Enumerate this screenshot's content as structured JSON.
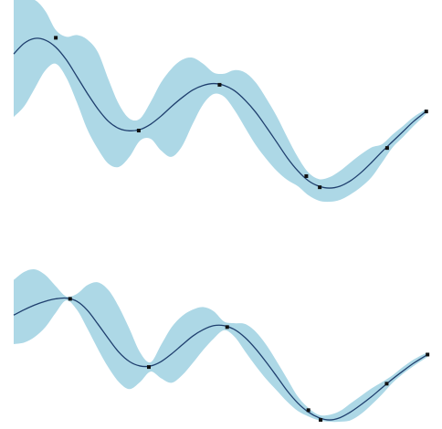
{
  "colors": {
    "band_fill": "#add8e6",
    "mean_line": "#1f3f6e",
    "point_marker": "#111111",
    "background": "#ffffff"
  },
  "chart_data": [
    {
      "type": "line",
      "description_role": "gaussian-process-top",
      "title": "",
      "xlabel": "",
      "ylabel": "",
      "axes_visible": false,
      "grid": false,
      "legend": "none",
      "xlim": [
        0,
        100
      ],
      "ylim": [
        0,
        100
      ],
      "observations": [
        {
          "x": 10,
          "y": 82
        },
        {
          "x": 29.7,
          "y": 37.8
        },
        {
          "x": 48.9,
          "y": 59.6
        },
        {
          "x": 69.5,
          "y": 16.1
        },
        {
          "x": 72.7,
          "y": 10.8
        },
        {
          "x": 88.7,
          "y": 29.5
        },
        {
          "x": 98,
          "y": 46.9
        }
      ],
      "mean": [
        {
          "x": 0,
          "y": 74.3
        },
        {
          "x": 2.5,
          "y": 79.4
        },
        {
          "x": 5,
          "y": 81.7
        },
        {
          "x": 7.5,
          "y": 80.9
        },
        {
          "x": 10,
          "y": 77.5
        },
        {
          "x": 12.5,
          "y": 71.5
        },
        {
          "x": 15,
          "y": 63.6
        },
        {
          "x": 17.5,
          "y": 55.5
        },
        {
          "x": 20,
          "y": 48.1
        },
        {
          "x": 22.5,
          "y": 42.2
        },
        {
          "x": 25,
          "y": 38.8
        },
        {
          "x": 27.5,
          "y": 37.7
        },
        {
          "x": 30,
          "y": 38.3
        },
        {
          "x": 32.5,
          "y": 40.8
        },
        {
          "x": 35,
          "y": 44.7
        },
        {
          "x": 37.5,
          "y": 49.3
        },
        {
          "x": 40,
          "y": 53.5
        },
        {
          "x": 42.5,
          "y": 57.1
        },
        {
          "x": 45,
          "y": 59.3
        },
        {
          "x": 47.5,
          "y": 60.2
        },
        {
          "x": 50,
          "y": 59.3
        },
        {
          "x": 52.5,
          "y": 56.7
        },
        {
          "x": 55,
          "y": 52.2
        },
        {
          "x": 57.5,
          "y": 46.5
        },
        {
          "x": 60,
          "y": 39.5
        },
        {
          "x": 62.5,
          "y": 32.2
        },
        {
          "x": 65,
          "y": 24.8
        },
        {
          "x": 67.5,
          "y": 18.6
        },
        {
          "x": 70,
          "y": 13.9
        },
        {
          "x": 72.5,
          "y": 11.3
        },
        {
          "x": 75,
          "y": 10.4
        },
        {
          "x": 77.5,
          "y": 11.3
        },
        {
          "x": 80,
          "y": 13.9
        },
        {
          "x": 82.5,
          "y": 17.8
        },
        {
          "x": 85,
          "y": 22.6
        },
        {
          "x": 87.5,
          "y": 27.8
        },
        {
          "x": 90,
          "y": 32.6
        },
        {
          "x": 92.5,
          "y": 37.4
        },
        {
          "x": 95,
          "y": 42.2
        },
        {
          "x": 98,
          "y": 47.0
        }
      ],
      "upper": [
        {
          "x": 0,
          "y": 100
        },
        {
          "x": 2.5,
          "y": 100
        },
        {
          "x": 5,
          "y": 100
        },
        {
          "x": 7.5,
          "y": 94.8
        },
        {
          "x": 10,
          "y": 85.7
        },
        {
          "x": 12.5,
          "y": 82.5
        },
        {
          "x": 15,
          "y": 83.3
        },
        {
          "x": 17.5,
          "y": 81.1
        },
        {
          "x": 20,
          "y": 75.1
        },
        {
          "x": 22.5,
          "y": 62.2
        },
        {
          "x": 25,
          "y": 50.3
        },
        {
          "x": 27.5,
          "y": 43.5
        },
        {
          "x": 30,
          "y": 43.5
        },
        {
          "x": 32.5,
          "y": 51.3
        },
        {
          "x": 35,
          "y": 60.7
        },
        {
          "x": 37.5,
          "y": 67.3
        },
        {
          "x": 40,
          "y": 71.5
        },
        {
          "x": 42.5,
          "y": 72.5
        },
        {
          "x": 45,
          "y": 69.6
        },
        {
          "x": 47.5,
          "y": 65.4
        },
        {
          "x": 50,
          "y": 64.9
        },
        {
          "x": 52.5,
          "y": 66.6
        },
        {
          "x": 55,
          "y": 65.4
        },
        {
          "x": 57.5,
          "y": 60.7
        },
        {
          "x": 60,
          "y": 53.1
        },
        {
          "x": 62.5,
          "y": 44.5
        },
        {
          "x": 65,
          "y": 34.5
        },
        {
          "x": 67.5,
          "y": 25.1
        },
        {
          "x": 70,
          "y": 17.8
        },
        {
          "x": 72.5,
          "y": 14.7
        },
        {
          "x": 75,
          "y": 15.6
        },
        {
          "x": 77.5,
          "y": 18.6
        },
        {
          "x": 80,
          "y": 22.6
        },
        {
          "x": 82.5,
          "y": 26.5
        },
        {
          "x": 85,
          "y": 29.8
        },
        {
          "x": 87.5,
          "y": 31.3
        },
        {
          "x": 90,
          "y": 35.9
        },
        {
          "x": 92.5,
          "y": 40.0
        },
        {
          "x": 95,
          "y": 44.3
        },
        {
          "x": 98,
          "y": 48.1
        }
      ],
      "lower": [
        {
          "x": 0,
          "y": 44.3
        },
        {
          "x": 2.5,
          "y": 49.4
        },
        {
          "x": 5,
          "y": 57.9
        },
        {
          "x": 7.5,
          "y": 66.4
        },
        {
          "x": 10,
          "y": 69.6
        },
        {
          "x": 12.5,
          "y": 63.0
        },
        {
          "x": 15,
          "y": 51.3
        },
        {
          "x": 17.5,
          "y": 38.3
        },
        {
          "x": 20,
          "y": 29.0
        },
        {
          "x": 22.5,
          "y": 22.0
        },
        {
          "x": 25,
          "y": 20.5
        },
        {
          "x": 27.5,
          "y": 25.3
        },
        {
          "x": 30,
          "y": 33.0
        },
        {
          "x": 32.5,
          "y": 33.9
        },
        {
          "x": 35,
          "y": 28.3
        },
        {
          "x": 37.5,
          "y": 25.3
        },
        {
          "x": 40,
          "y": 30.4
        },
        {
          "x": 42.5,
          "y": 40.9
        },
        {
          "x": 45,
          "y": 50.3
        },
        {
          "x": 47.5,
          "y": 55.2
        },
        {
          "x": 50,
          "y": 53.9
        },
        {
          "x": 52.5,
          "y": 47.4
        },
        {
          "x": 55,
          "y": 39.1
        },
        {
          "x": 57.5,
          "y": 30.9
        },
        {
          "x": 60,
          "y": 24.3
        },
        {
          "x": 62.5,
          "y": 18.6
        },
        {
          "x": 65,
          "y": 14.3
        },
        {
          "x": 67.5,
          "y": 11.3
        },
        {
          "x": 70,
          "y": 7.0
        },
        {
          "x": 72.5,
          "y": 4.4
        },
        {
          "x": 75,
          "y": 3.9
        },
        {
          "x": 77.5,
          "y": 4.8
        },
        {
          "x": 80,
          "y": 7.4
        },
        {
          "x": 82.5,
          "y": 10.9
        },
        {
          "x": 85,
          "y": 15.6
        },
        {
          "x": 87.5,
          "y": 22.6
        },
        {
          "x": 90,
          "y": 29.8
        },
        {
          "x": 92.5,
          "y": 34.8
        },
        {
          "x": 95,
          "y": 40.0
        },
        {
          "x": 98,
          "y": 45.7
        }
      ]
    },
    {
      "type": "line",
      "description_role": "gaussian-process-bottom",
      "title": "",
      "xlabel": "",
      "ylabel": "",
      "axes_visible": false,
      "grid": false,
      "legend": "none",
      "xlim": [
        0,
        100
      ],
      "ylim": [
        0,
        100
      ],
      "observations": [
        {
          "x": 13.4,
          "y": 70.1
        },
        {
          "x": 32.1,
          "y": 31.2
        },
        {
          "x": 50.7,
          "y": 54.0
        },
        {
          "x": 70.0,
          "y": 6.6
        },
        {
          "x": 72.9,
          "y": 1.0
        },
        {
          "x": 88.6,
          "y": 21.7
        },
        {
          "x": 98.3,
          "y": 38.3
        }
      ],
      "mean": [
        {
          "x": 0,
          "y": 60.8
        },
        {
          "x": 2.5,
          "y": 63.9
        },
        {
          "x": 5,
          "y": 66.6
        },
        {
          "x": 7.5,
          "y": 68.7
        },
        {
          "x": 10,
          "y": 70.1
        },
        {
          "x": 12.5,
          "y": 70.5
        },
        {
          "x": 15,
          "y": 68.7
        },
        {
          "x": 17.5,
          "y": 63.6
        },
        {
          "x": 20,
          "y": 55.7
        },
        {
          "x": 22.5,
          "y": 47.4
        },
        {
          "x": 25,
          "y": 39.6
        },
        {
          "x": 27.5,
          "y": 34.3
        },
        {
          "x": 30,
          "y": 31.8
        },
        {
          "x": 32.5,
          "y": 31.8
        },
        {
          "x": 35,
          "y": 34.3
        },
        {
          "x": 37.5,
          "y": 38.7
        },
        {
          "x": 40,
          "y": 43.8
        },
        {
          "x": 42.5,
          "y": 48.8
        },
        {
          "x": 45,
          "y": 52.5
        },
        {
          "x": 47.5,
          "y": 54.8
        },
        {
          "x": 50,
          "y": 54.8
        },
        {
          "x": 52.5,
          "y": 52.5
        },
        {
          "x": 55,
          "y": 47.9
        },
        {
          "x": 57.5,
          "y": 41.5
        },
        {
          "x": 60,
          "y": 33.9
        },
        {
          "x": 62.5,
          "y": 25.8
        },
        {
          "x": 65,
          "y": 17.5
        },
        {
          "x": 67.5,
          "y": 10.6
        },
        {
          "x": 70,
          "y": 5.5
        },
        {
          "x": 72.5,
          "y": 2.3
        },
        {
          "x": 75,
          "y": 1.0
        },
        {
          "x": 77.5,
          "y": 2.3
        },
        {
          "x": 80,
          "y": 5.5
        },
        {
          "x": 82.5,
          "y": 9.7
        },
        {
          "x": 85,
          "y": 14.3
        },
        {
          "x": 87.5,
          "y": 19.4
        },
        {
          "x": 90,
          "y": 24.4
        },
        {
          "x": 92.5,
          "y": 29.0
        },
        {
          "x": 95,
          "y": 33.4
        },
        {
          "x": 98.3,
          "y": 38.3
        }
      ],
      "upper": [
        {
          "x": 0,
          "y": 80.9
        },
        {
          "x": 2.5,
          "y": 85.5
        },
        {
          "x": 5,
          "y": 86.9
        },
        {
          "x": 7.5,
          "y": 83.7
        },
        {
          "x": 10,
          "y": 77.3
        },
        {
          "x": 12.5,
          "y": 71.5
        },
        {
          "x": 15,
          "y": 72.9
        },
        {
          "x": 17.5,
          "y": 77.9
        },
        {
          "x": 20,
          "y": 79.5
        },
        {
          "x": 22.5,
          "y": 75.1
        },
        {
          "x": 25,
          "y": 65.4
        },
        {
          "x": 27.5,
          "y": 52.9
        },
        {
          "x": 30,
          "y": 39.6
        },
        {
          "x": 32.5,
          "y": 33.9
        },
        {
          "x": 35,
          "y": 43.8
        },
        {
          "x": 37.5,
          "y": 53.9
        },
        {
          "x": 40,
          "y": 60.3
        },
        {
          "x": 42.5,
          "y": 63.9
        },
        {
          "x": 45,
          "y": 65.4
        },
        {
          "x": 47.5,
          "y": 63.0
        },
        {
          "x": 50,
          "y": 57.1
        },
        {
          "x": 52.5,
          "y": 56.2
        },
        {
          "x": 55,
          "y": 55.7
        },
        {
          "x": 57.5,
          "y": 51.3
        },
        {
          "x": 60,
          "y": 43.8
        },
        {
          "x": 62.5,
          "y": 34.3
        },
        {
          "x": 65,
          "y": 24.3
        },
        {
          "x": 67.5,
          "y": 14.3
        },
        {
          "x": 70,
          "y": 7.9
        },
        {
          "x": 72.5,
          "y": 3.9
        },
        {
          "x": 75,
          "y": 3.9
        },
        {
          "x": 77.5,
          "y": 6.1
        },
        {
          "x": 80,
          "y": 10.4
        },
        {
          "x": 82.5,
          "y": 14.7
        },
        {
          "x": 85,
          "y": 19.0
        },
        {
          "x": 87.5,
          "y": 22.6
        },
        {
          "x": 90,
          "y": 26.5
        },
        {
          "x": 92.5,
          "y": 31.3
        },
        {
          "x": 95,
          "y": 35.5
        },
        {
          "x": 98.3,
          "y": 39.6
        }
      ],
      "lower": [
        {
          "x": 0,
          "y": 44.3
        },
        {
          "x": 2.5,
          "y": 45.2
        },
        {
          "x": 5,
          "y": 48.4
        },
        {
          "x": 7.5,
          "y": 53.9
        },
        {
          "x": 10,
          "y": 62.2
        },
        {
          "x": 12.5,
          "y": 69.2
        },
        {
          "x": 15,
          "y": 63.9
        },
        {
          "x": 17.5,
          "y": 53.1
        },
        {
          "x": 20,
          "y": 41.5
        },
        {
          "x": 22.5,
          "y": 30.9
        },
        {
          "x": 25,
          "y": 22.6
        },
        {
          "x": 27.5,
          "y": 18.6
        },
        {
          "x": 30,
          "y": 22.6
        },
        {
          "x": 32.5,
          "y": 28.6
        },
        {
          "x": 35,
          "y": 24.8
        },
        {
          "x": 37.5,
          "y": 22.2
        },
        {
          "x": 40,
          "y": 26.5
        },
        {
          "x": 42.5,
          "y": 33.4
        },
        {
          "x": 45,
          "y": 40.9
        },
        {
          "x": 47.5,
          "y": 47.4
        },
        {
          "x": 50,
          "y": 52.2
        },
        {
          "x": 52.5,
          "y": 48.4
        },
        {
          "x": 55,
          "y": 40.0
        },
        {
          "x": 57.5,
          "y": 31.8
        },
        {
          "x": 60,
          "y": 24.3
        },
        {
          "x": 62.5,
          "y": 17.8
        },
        {
          "x": 65,
          "y": 11.3
        },
        {
          "x": 67.5,
          "y": 6.1
        },
        {
          "x": 70,
          "y": 3.0
        },
        {
          "x": 72.5,
          "y": 0.8
        },
        {
          "x": 75,
          "y": 0.0
        },
        {
          "x": 77.5,
          "y": 0.0
        },
        {
          "x": 80,
          "y": 0.8
        },
        {
          "x": 82.5,
          "y": 4.4
        },
        {
          "x": 85,
          "y": 9.7
        },
        {
          "x": 87.5,
          "y": 15.6
        },
        {
          "x": 90,
          "y": 22.2
        },
        {
          "x": 92.5,
          "y": 27.4
        },
        {
          "x": 95,
          "y": 31.8
        },
        {
          "x": 98.3,
          "y": 37.0
        }
      ]
    }
  ]
}
